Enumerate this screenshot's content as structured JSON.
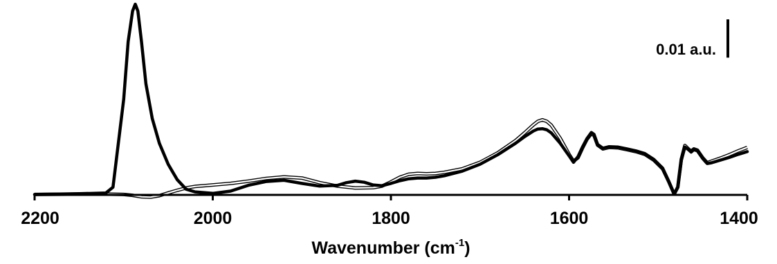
{
  "chart_data": {
    "type": "line",
    "xlabel": {
      "main": "Wavenumber (cm",
      "sup": "-1",
      "end": ")"
    },
    "ylabel": "",
    "xlim": [
      2200,
      1400
    ],
    "x_reversed": true,
    "ylim": [
      0,
      0.05
    ],
    "x_ticks": [
      2200,
      2000,
      1800,
      1600,
      1400
    ],
    "x_tick_labels": [
      "2200",
      "2000",
      "1800",
      "1600",
      "1400"
    ],
    "grid": false,
    "legend": "none",
    "scale_bar": {
      "label": "0.01 a.u.",
      "value": 0.01
    },
    "series": [
      {
        "style": "thick",
        "x": [
          2200,
          2150,
          2120,
          2112,
          2100,
          2095,
          2090,
          2087,
          2084,
          2080,
          2075,
          2068,
          2060,
          2050,
          2040,
          2030,
          2020,
          2000,
          1980,
          1960,
          1940,
          1920,
          1900,
          1880,
          1860,
          1850,
          1840,
          1830,
          1820,
          1810,
          1800,
          1790,
          1780,
          1770,
          1760,
          1750,
          1740,
          1720,
          1700,
          1680,
          1660,
          1650,
          1640,
          1635,
          1630,
          1625,
          1620,
          1610,
          1600,
          1595,
          1590,
          1585,
          1580,
          1575,
          1572,
          1568,
          1562,
          1555,
          1545,
          1535,
          1525,
          1515,
          1505,
          1495,
          1488,
          1482,
          1478,
          1474,
          1470,
          1466,
          1463,
          1460,
          1456,
          1450,
          1445,
          1440,
          1430,
          1420,
          1410,
          1400
        ],
        "y": [
          0.0001,
          0.0003,
          0.0005,
          0.002,
          0.025,
          0.04,
          0.048,
          0.0498,
          0.048,
          0.04,
          0.029,
          0.02,
          0.0135,
          0.008,
          0.004,
          0.0015,
          0.0008,
          0.0004,
          0.001,
          0.0025,
          0.0035,
          0.0038,
          0.003,
          0.0023,
          0.0025,
          0.0032,
          0.0036,
          0.0033,
          0.0026,
          0.0024,
          0.003,
          0.0037,
          0.0042,
          0.0044,
          0.0044,
          0.0046,
          0.005,
          0.0062,
          0.008,
          0.0105,
          0.0135,
          0.0152,
          0.0167,
          0.0172,
          0.0173,
          0.017,
          0.0162,
          0.0135,
          0.0102,
          0.0085,
          0.01,
          0.0125,
          0.0147,
          0.0163,
          0.0158,
          0.0132,
          0.0122,
          0.0126,
          0.0125,
          0.012,
          0.0115,
          0.0108,
          0.0093,
          0.007,
          0.0035,
          0.0002,
          0.002,
          0.009,
          0.0125,
          0.0118,
          0.0112,
          0.0118,
          0.0115,
          0.0095,
          0.0082,
          0.0084,
          0.0091,
          0.0098,
          0.0106,
          0.0113
        ]
      },
      {
        "style": "outline",
        "x": [
          2200,
          2150,
          2120,
          2100,
          2090,
          2080,
          2070,
          2060,
          2050,
          2040,
          2030,
          2020,
          2010,
          2000,
          1980,
          1960,
          1940,
          1920,
          1900,
          1880,
          1860,
          1840,
          1820,
          1810,
          1800,
          1790,
          1780,
          1770,
          1760,
          1750,
          1740,
          1720,
          1700,
          1680,
          1660,
          1650,
          1640,
          1635,
          1630,
          1625,
          1620,
          1610,
          1600,
          1595,
          1590,
          1585,
          1580,
          1575,
          1572,
          1568,
          1562,
          1555,
          1545,
          1535,
          1525,
          1515,
          1505,
          1495,
          1488,
          1482,
          1478,
          1474,
          1470,
          1466,
          1463,
          1460,
          1456,
          1450,
          1445,
          1440,
          1430,
          1420,
          1410,
          1400
        ],
        "y": [
          0.0001,
          0.0002,
          0.0002,
          0.0001,
          -0.0001,
          -0.0005,
          -0.0006,
          -0.0002,
          0.0005,
          0.0012,
          0.0018,
          0.0022,
          0.0024,
          0.0026,
          0.003,
          0.0036,
          0.0043,
          0.0047,
          0.0044,
          0.0032,
          0.0023,
          0.0018,
          0.0019,
          0.0023,
          0.0034,
          0.0046,
          0.0054,
          0.0056,
          0.0055,
          0.0056,
          0.0059,
          0.0068,
          0.0085,
          0.011,
          0.0142,
          0.0162,
          0.0183,
          0.0192,
          0.0196,
          0.0192,
          0.0182,
          0.0148,
          0.0106,
          0.0088,
          0.0097,
          0.0122,
          0.0145,
          0.016,
          0.0155,
          0.013,
          0.012,
          0.0124,
          0.0123,
          0.0118,
          0.0113,
          0.0106,
          0.0091,
          0.0068,
          0.0034,
          0.0002,
          0.002,
          0.0093,
          0.0129,
          0.012,
          0.0114,
          0.012,
          0.0117,
          0.0097,
          0.0084,
          0.0088,
          0.0096,
          0.0105,
          0.0115,
          0.0124
        ]
      }
    ]
  }
}
